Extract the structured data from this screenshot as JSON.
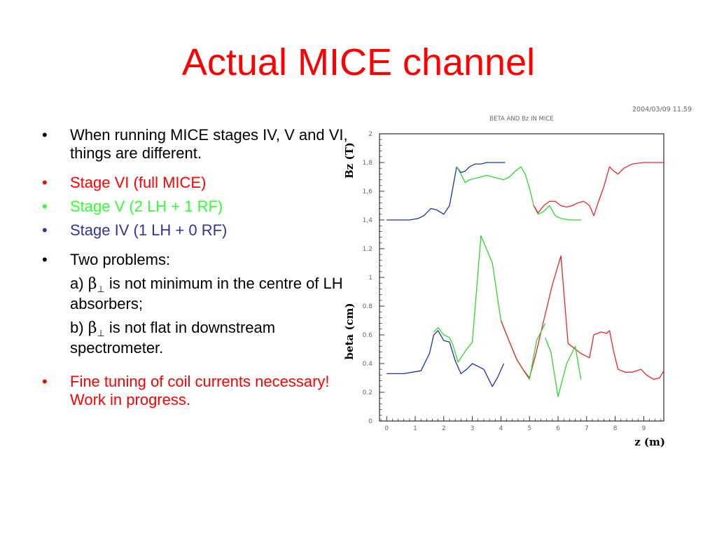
{
  "slide": {
    "title": "Actual MICE channel",
    "bullets": [
      {
        "text": "When running MICE stages IV, V and VI, things are different.",
        "color": "#000000",
        "gap_after": 16
      },
      {
        "text": "Stage VI (full MICE)",
        "color": "#ff0000",
        "gap_after": 8
      },
      {
        "text": "Stage V (2 LH + 1 RF)",
        "color": "#33ff33",
        "gap_after": 8
      },
      {
        "text": "Stage IV (1 LH + 0 RF)",
        "color": "#333399",
        "gap_after": 16
      },
      {
        "text": "Two problems:",
        "color": "#000000",
        "gap_after": 8
      }
    ],
    "problems": [
      {
        "prefix": "a) ",
        "symbol": "β",
        "sub": "⊥",
        "text": " is not minimum in the centre of LH absorbers;"
      },
      {
        "prefix": "b) ",
        "symbol": "β",
        "sub": "⊥",
        "text": " is not flat in downstream spectrometer."
      }
    ],
    "final_bullet": {
      "text": "Fine tuning of coil currents necessary! Work in progress.",
      "color": "#ff0000"
    },
    "bullet_char": "•"
  },
  "chart_data": {
    "type": "line",
    "title": "BETA AND Bz IN MICE",
    "timestamp": "2004/03/09   11.59",
    "xlabel": "z (m)",
    "ylabel_top": "Bz (T)",
    "ylabel_bottom": "beta (cm)",
    "xlim": [
      -0.25,
      9.7
    ],
    "ylim": [
      0,
      2
    ],
    "xticks": [
      "0",
      "1",
      "2",
      "3",
      "4",
      "5",
      "6",
      "7",
      "8",
      "9"
    ],
    "yticks": [
      "0",
      "0.2",
      "0.4",
      "0.6",
      "0.8",
      "1",
      "1.2",
      "1,4",
      "1,6",
      "1,8",
      "2"
    ],
    "colors": {
      "stage_vi": "#e8262a",
      "stage_v": "#2fd62f",
      "stage_iv": "#1c2fb0"
    },
    "series": [
      {
        "key": "stage_vi",
        "group": "beta",
        "x": [
          6.35,
          6.8,
          7.1,
          7.25,
          7.5,
          7.7,
          7.8,
          7.95,
          8.1,
          8.35,
          8.6,
          8.9,
          9.1,
          9.35,
          9.55,
          9.7
        ],
        "y": [
          0.54,
          0.47,
          0.44,
          0.6,
          0.62,
          0.61,
          0.63,
          0.48,
          0.36,
          0.34,
          0.34,
          0.36,
          0.32,
          0.29,
          0.3,
          0.35
        ]
      },
      {
        "key": "stage_v",
        "group": "beta",
        "x": [
          5.55,
          5.75,
          6.0,
          6.3,
          6.6,
          6.8
        ],
        "y": [
          0.58,
          0.48,
          0.17,
          0.4,
          0.52,
          0.29
        ]
      },
      {
        "key": "stage_vi",
        "group": "beta",
        "x": [
          4.8,
          5.0,
          5.2,
          5.5,
          5.8,
          6.1,
          6.35
        ],
        "y": [
          0.35,
          0.3,
          0.45,
          0.7,
          0.95,
          1.15,
          0.54
        ]
      },
      {
        "key": "stage_v",
        "group": "beta",
        "x": [
          2.3,
          2.5,
          2.8,
          3.0,
          3.3,
          3.7,
          4.0,
          4.3,
          4.55,
          4.8,
          5.0,
          5.25,
          5.55
        ],
        "y": [
          0.54,
          0.41,
          0.5,
          0.55,
          1.29,
          1.1,
          0.7,
          0.55,
          0.43,
          0.35,
          0.29,
          0.56,
          0.68
        ]
      },
      {
        "key": "stage_vi",
        "group": "beta",
        "x": [
          4.0,
          4.3,
          4.55,
          4.8,
          5.0
        ],
        "y": [
          0.7,
          0.55,
          0.43,
          0.35,
          0.3
        ]
      },
      {
        "key": "stage_iv",
        "group": "beta",
        "x": [
          0,
          0.3,
          0.6,
          0.9,
          1.2,
          1.5,
          1.65,
          1.8,
          2.0,
          2.2,
          2.4,
          2.6,
          2.8,
          3.0,
          3.2,
          3.4,
          3.7,
          3.9,
          4.1
        ],
        "y": [
          0.33,
          0.33,
          0.33,
          0.34,
          0.35,
          0.47,
          0.6,
          0.63,
          0.56,
          0.55,
          0.42,
          0.33,
          0.36,
          0.4,
          0.38,
          0.36,
          0.24,
          0.31,
          0.4
        ]
      },
      {
        "key": "stage_v",
        "group": "beta",
        "x": [
          1.65,
          1.8,
          2.0,
          2.2,
          2.3
        ],
        "y": [
          0.62,
          0.65,
          0.6,
          0.58,
          0.54
        ]
      },
      {
        "key": "stage_iv",
        "group": "bz",
        "x": [
          0,
          0.4,
          0.8,
          1.1,
          1.3,
          1.55,
          1.75,
          2.0,
          2.2,
          2.45,
          2.6,
          2.75,
          2.9,
          3.1,
          3.3,
          3.5,
          3.7,
          4.0,
          4.15
        ],
        "y": [
          1.4,
          1.4,
          1.4,
          1.41,
          1.43,
          1.48,
          1.47,
          1.44,
          1.5,
          1.77,
          1.73,
          1.74,
          1.77,
          1.79,
          1.79,
          1.8,
          1.8,
          1.8,
          1.8
        ]
      },
      {
        "key": "stage_v",
        "group": "bz",
        "x": [
          2.45,
          2.6,
          2.75,
          2.9,
          3.1,
          3.3,
          3.5,
          3.7,
          3.9,
          4.1,
          4.3,
          4.5,
          4.7,
          4.85,
          5.0,
          5.15,
          5.3,
          5.5,
          5.7,
          5.9,
          6.1,
          6.4,
          6.8
        ],
        "y": [
          1.77,
          1.72,
          1.66,
          1.68,
          1.69,
          1.7,
          1.71,
          1.7,
          1.69,
          1.68,
          1.7,
          1.74,
          1.77,
          1.72,
          1.62,
          1.5,
          1.44,
          1.46,
          1.5,
          1.43,
          1.41,
          1.4,
          1.4
        ]
      },
      {
        "key": "stage_vi",
        "group": "bz",
        "x": [
          5.15,
          5.3,
          5.5,
          5.7,
          5.9,
          6.1,
          6.3,
          6.5,
          6.7,
          6.9,
          7.1,
          7.25,
          7.4,
          7.6,
          7.8,
          7.95,
          8.1,
          8.3,
          8.6,
          9.0,
          9.3,
          9.7
        ],
        "y": [
          1.5,
          1.45,
          1.5,
          1.53,
          1.53,
          1.5,
          1.49,
          1.5,
          1.52,
          1.53,
          1.5,
          1.43,
          1.52,
          1.63,
          1.77,
          1.74,
          1.72,
          1.76,
          1.79,
          1.8,
          1.8,
          1.8
        ]
      }
    ]
  }
}
